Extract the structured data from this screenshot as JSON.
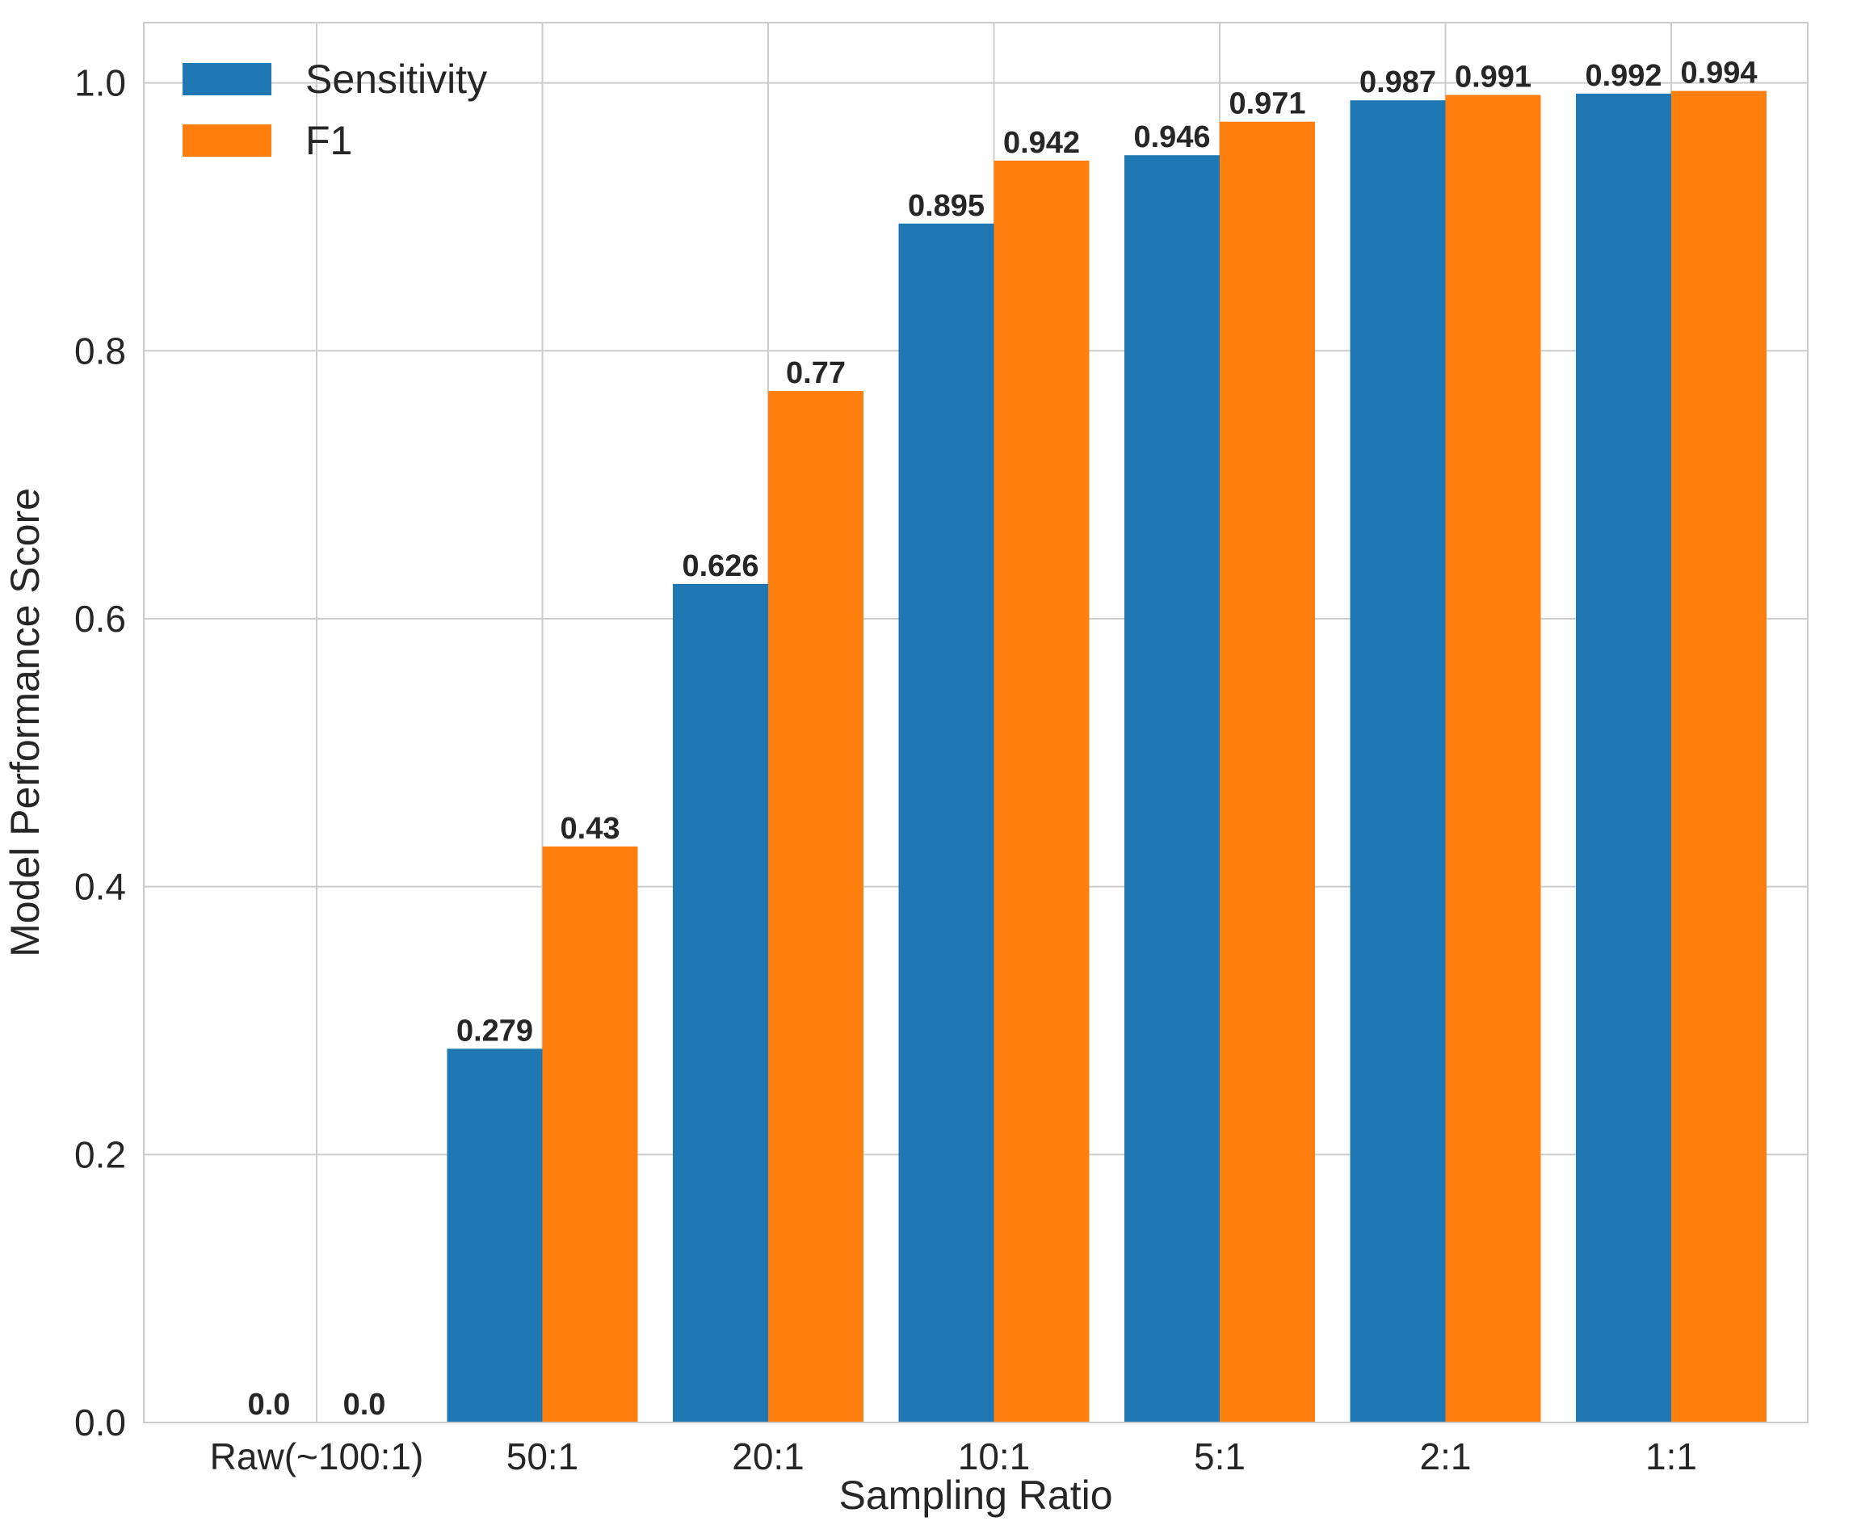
{
  "chart_data": {
    "type": "bar",
    "title": "",
    "xlabel": "Sampling Ratio",
    "ylabel": "Model Performance Score",
    "categories": [
      "Raw(~100:1)",
      "50:1",
      "20:1",
      "10:1",
      "5:1",
      "2:1",
      "1:1"
    ],
    "series": [
      {
        "name": "Sensitivity",
        "color": "#1f77b4",
        "values": [
          0.0,
          0.279,
          0.626,
          0.895,
          0.946,
          0.987,
          0.992
        ]
      },
      {
        "name": "F1",
        "color": "#ff7f0e",
        "values": [
          0.0,
          0.43,
          0.77,
          0.942,
          0.971,
          0.991,
          0.994
        ]
      }
    ],
    "data_labels": {
      "Sensitivity": [
        "0.0",
        "0.279",
        "0.626",
        "0.895",
        "0.946",
        "0.987",
        "0.992"
      ],
      "F1": [
        "0.0",
        "0.43",
        "0.77",
        "0.942",
        "0.971",
        "0.991",
        "0.994"
      ]
    },
    "ylim": [
      0,
      1.045
    ],
    "yticks": [
      "0.0",
      "0.2",
      "0.4",
      "0.6",
      "0.8",
      "1.0"
    ],
    "ytick_values": [
      0,
      0.2,
      0.4,
      0.6,
      0.8,
      1.0
    ],
    "grid": true,
    "legend_position": "top-left"
  }
}
